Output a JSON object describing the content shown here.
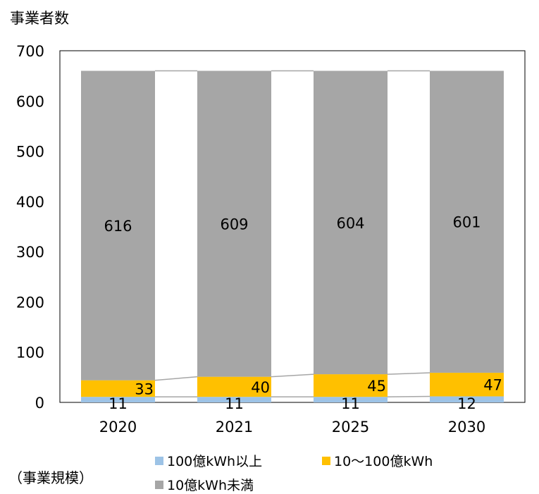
{
  "chart_data": {
    "type": "bar",
    "stacked": true,
    "title": "",
    "ylabel": "事業者数",
    "xlabel": "",
    "categories": [
      "2020",
      "2021",
      "2025",
      "2030"
    ],
    "ylim": [
      0,
      700
    ],
    "yticks": [
      0,
      100,
      200,
      300,
      400,
      500,
      600,
      700
    ],
    "grid": false,
    "series_lines": true,
    "series": [
      {
        "name": "100億kWh以上",
        "values": [
          11,
          11,
          11,
          12
        ],
        "color": "#9dc3e6",
        "labels": [
          "11",
          "11",
          "11",
          "12"
        ]
      },
      {
        "name": "10～100億kWh",
        "values": [
          33,
          40,
          45,
          47
        ],
        "color": "#ffc000",
        "labels": [
          "33",
          "40",
          "45",
          "47"
        ]
      },
      {
        "name": "10億kWh未満",
        "values": [
          616,
          609,
          604,
          601
        ],
        "color": "#a6a6a6",
        "labels": [
          "616",
          "609",
          "604",
          "601"
        ]
      }
    ],
    "legend_title": "（事業規模）",
    "legend_position": "bottom"
  }
}
